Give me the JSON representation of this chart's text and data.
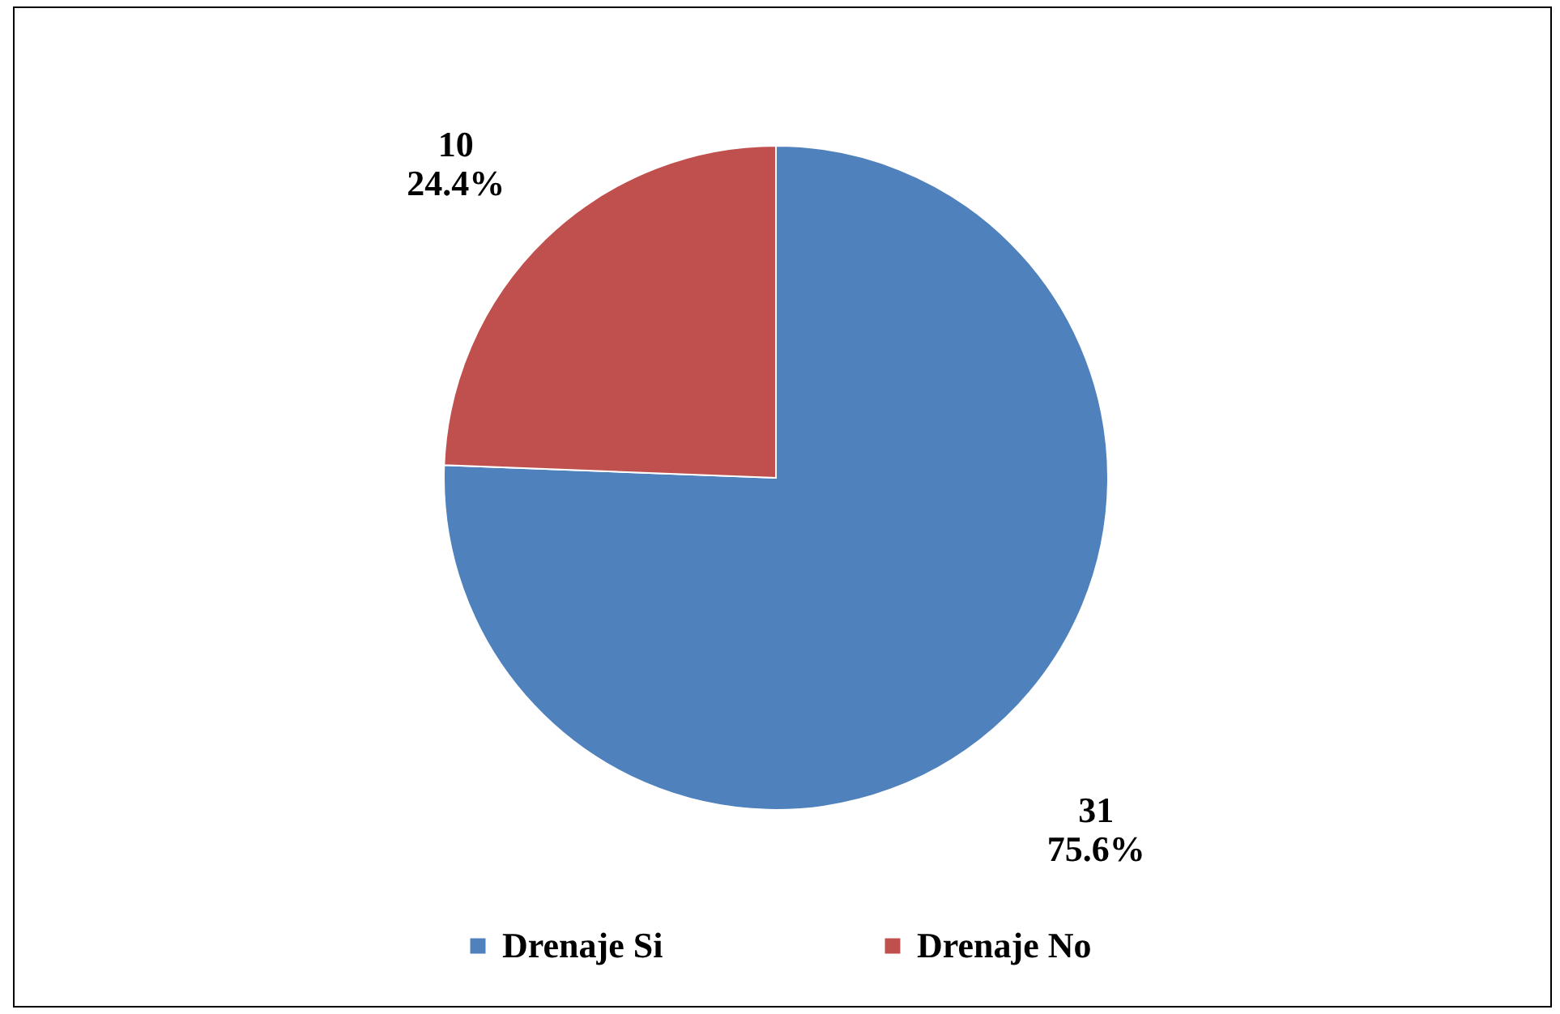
{
  "chart_data": {
    "type": "pie",
    "categories": [
      "Drenaje Si",
      "Drenaje No"
    ],
    "values": [
      31,
      10
    ],
    "colors": [
      "#4f81bd",
      "#c0504d"
    ],
    "value_labels": [
      "31\n75.6%",
      "10\n24.4%"
    ],
    "legend": "bottom"
  }
}
